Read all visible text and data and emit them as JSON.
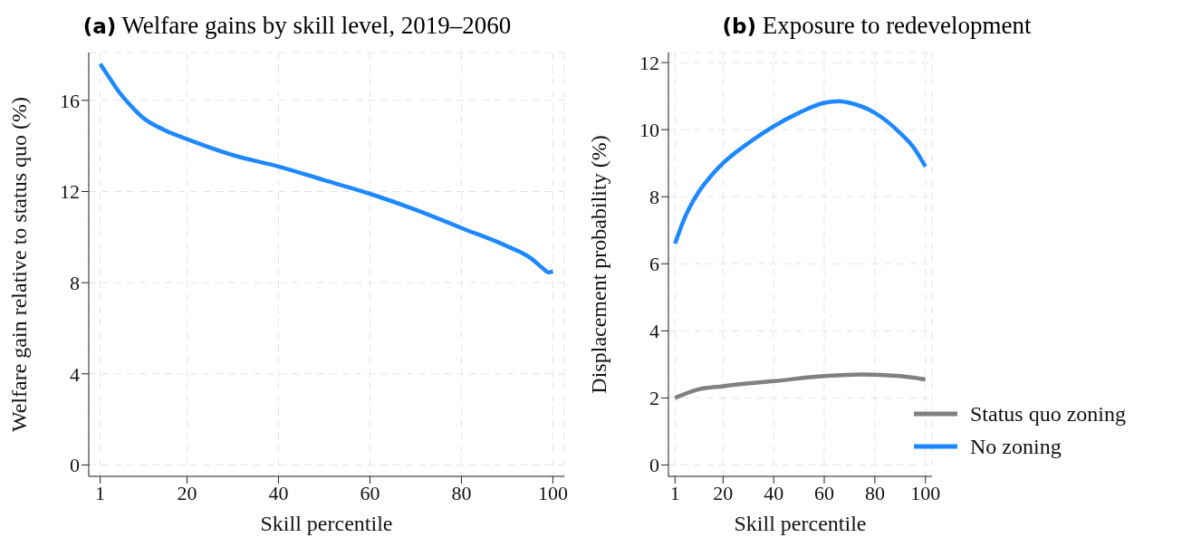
{
  "chart_data": [
    {
      "type": "line",
      "title": "(a) Welfare gains by skill level, 2019–2060",
      "xlabel": "Skill percentile",
      "ylabel": "Welfare gain relative to status quo (%)",
      "xlim": [
        -1.5,
        102.5
      ],
      "ylim": [
        -0.5,
        18.1
      ],
      "xticks": [
        1,
        20,
        40,
        60,
        80,
        100
      ],
      "yticks": [
        0,
        4,
        8,
        12,
        16
      ],
      "grid": true,
      "legend": false,
      "marker": "none",
      "line_style": "solid",
      "x": [
        1,
        3,
        5,
        8,
        10,
        15,
        20,
        30,
        40,
        50,
        60,
        70,
        80,
        90,
        95,
        98,
        99,
        100
      ],
      "series": [
        {
          "color": "#1e88ff",
          "values": [
            17.6,
            17.0,
            16.4,
            15.7,
            15.3,
            14.7,
            14.3,
            13.6,
            13.1,
            12.5,
            11.9,
            11.2,
            10.4,
            9.6,
            9.1,
            8.6,
            8.45,
            8.5
          ]
        }
      ]
    },
    {
      "type": "line",
      "title": "(b) Exposure to redevelopment",
      "xlabel": "Skill percentile",
      "ylabel": "Displacement probability (%)",
      "xlim": [
        -1.6,
        102.6
      ],
      "ylim": [
        -0.34,
        12.3
      ],
      "xticks": [
        1,
        20,
        40,
        60,
        80,
        100
      ],
      "yticks": [
        0,
        2,
        4,
        6,
        8,
        10,
        12
      ],
      "grid": true,
      "legend": "bottom right",
      "marker": "none",
      "line_style": "solid",
      "series": [
        {
          "name": "Status quo zoning",
          "color": "#808080",
          "x": [
            1,
            10,
            20,
            40,
            60,
            75,
            90,
            100
          ],
          "values": [
            2.0,
            2.25,
            2.35,
            2.5,
            2.65,
            2.7,
            2.65,
            2.55
          ]
        },
        {
          "name": "No zoning",
          "color": "#1e88ff",
          "x": [
            1,
            5,
            10,
            15,
            20,
            30,
            40,
            50,
            60,
            66,
            70,
            80,
            90,
            95,
            100
          ],
          "values": [
            6.6,
            7.4,
            8.1,
            8.6,
            9.0,
            9.6,
            10.1,
            10.5,
            10.8,
            10.85,
            10.8,
            10.5,
            9.9,
            9.5,
            8.9
          ]
        }
      ]
    }
  ]
}
